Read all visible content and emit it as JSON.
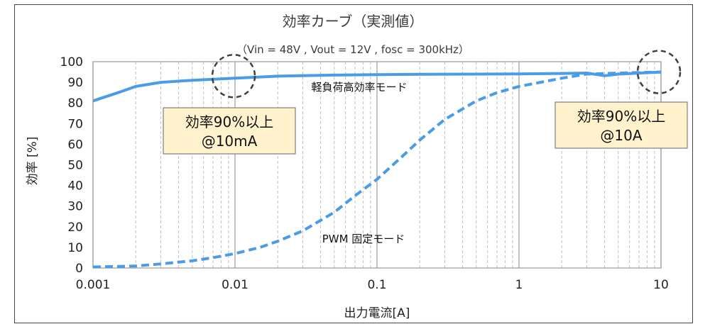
{
  "chart_data": {
    "type": "line",
    "title": "効率カーブ（実測値）",
    "subtitle": "（Vin = 48V , Vout = 12V , fosc = 300kHz）",
    "xlabel": "出力電流[A]",
    "ylabel": "効率 [%]",
    "xscale": "log",
    "xlim": [
      0.001,
      10
    ],
    "ylim": [
      0,
      100
    ],
    "xticks": [
      0.001,
      0.01,
      0.1,
      1,
      10
    ],
    "xtick_labels": [
      "0.001",
      "0.01",
      "0.1",
      "1",
      "10"
    ],
    "yticks": [
      0,
      10,
      20,
      30,
      40,
      50,
      60,
      70,
      80,
      90,
      100
    ],
    "ytick_labels": [
      "0",
      "10",
      "20",
      "30",
      "40",
      "50",
      "60",
      "70",
      "80",
      "90",
      "100"
    ],
    "grid": "log-minor-x",
    "series": [
      {
        "name": "軽負荷高効率モード",
        "style": "solid",
        "color": "#4a9be8",
        "x": [
          0.001,
          0.0015,
          0.002,
          0.003,
          0.005,
          0.01,
          0.02,
          0.05,
          0.1,
          0.2,
          0.5,
          1,
          2,
          3,
          4,
          5,
          10
        ],
        "y": [
          81,
          85,
          88,
          90,
          91,
          92,
          93,
          93.5,
          93.7,
          93.9,
          94,
          94.1,
          94.3,
          94.5,
          93.2,
          94,
          95
        ]
      },
      {
        "name": "PWM 固定モード",
        "style": "dashed",
        "color": "#4a9be8",
        "x": [
          0.001,
          0.002,
          0.003,
          0.005,
          0.007,
          0.01,
          0.015,
          0.02,
          0.03,
          0.05,
          0.07,
          0.1,
          0.15,
          0.2,
          0.3,
          0.5,
          0.7,
          1,
          2,
          3,
          5,
          10
        ],
        "y": [
          0.5,
          1,
          2,
          3.5,
          5,
          7,
          10,
          13,
          18,
          27,
          35,
          43,
          54,
          62,
          72,
          81,
          85,
          88,
          92,
          94,
          94.5,
          95
        ]
      }
    ],
    "annotations": [
      {
        "text_line1": "効率90%以上",
        "text_line2": "@10mA",
        "x": 0.01,
        "y": 92
      },
      {
        "text_line1": "効率90%以上",
        "text_line2": "@10A",
        "x": 10,
        "y": 95
      }
    ]
  }
}
